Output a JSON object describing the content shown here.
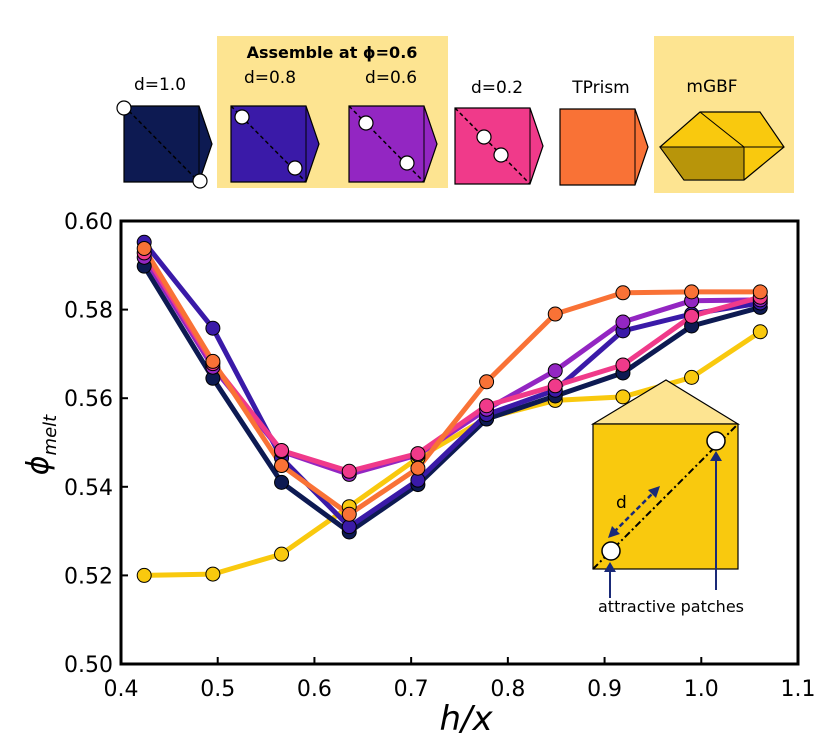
{
  "legend": {
    "assemble_label": "Assemble at ϕ=0.6",
    "shapes": [
      {
        "label": "d=1.0",
        "color": "#0d1a52"
      },
      {
        "label": "d=0.8",
        "color": "#3a1aa8"
      },
      {
        "label": "d=0.6",
        "color": "#9326c2"
      },
      {
        "label": "d=0.2",
        "color": "#f03a8a"
      },
      {
        "label": "TPrism",
        "color": "#f97236"
      },
      {
        "label": "mGBF",
        "color": "#f9c90e"
      }
    ]
  },
  "inset": {
    "d_label": "d",
    "patch_label": "attractive patches"
  },
  "chart_data": {
    "type": "line",
    "title": "",
    "xlabel": "h/x",
    "ylabel": "ϕ",
    "ylabel_sub": "melt",
    "xlim": [
      0.4,
      1.1
    ],
    "ylim": [
      0.5,
      0.6
    ],
    "xticks": [
      "0.4",
      "0.5",
      "0.6",
      "0.7",
      "0.8",
      "0.9",
      "1.0",
      "1.1"
    ],
    "yticks": [
      "0.50",
      "0.52",
      "0.54",
      "0.56",
      "0.58",
      "0.60"
    ],
    "x": [
      0.424,
      0.495,
      0.566,
      0.636,
      0.707,
      0.778,
      0.849,
      0.919,
      0.99,
      1.061
    ],
    "series": [
      {
        "name": "mGBF",
        "color": "#f9c90e",
        "values": [
          0.52,
          0.5203,
          0.5248,
          0.5355,
          0.5465,
          0.5555,
          0.5595,
          0.5603,
          0.5647,
          0.575
        ]
      },
      {
        "name": "d=1.0",
        "color": "#0d1a52",
        "values": [
          0.5898,
          0.5645,
          0.541,
          0.5298,
          0.5405,
          0.5553,
          0.5605,
          0.5657,
          0.5763,
          0.5805
        ]
      },
      {
        "name": "d=0.8",
        "color": "#3a1aa8",
        "values": [
          0.5952,
          0.5758,
          0.5465,
          0.531,
          0.5415,
          0.5563,
          0.5618,
          0.5752,
          0.579,
          0.5815
        ]
      },
      {
        "name": "d=0.6",
        "color": "#9326c2",
        "values": [
          0.5918,
          0.567,
          0.548,
          0.5428,
          0.5472,
          0.5575,
          0.5662,
          0.5772,
          0.582,
          0.5822
        ]
      },
      {
        "name": "d=0.2",
        "color": "#f03a8a",
        "values": [
          0.5928,
          0.5678,
          0.5482,
          0.5435,
          0.5475,
          0.5583,
          0.5628,
          0.5675,
          0.5785,
          0.5828
        ]
      },
      {
        "name": "TPrism",
        "color": "#f97236",
        "values": [
          0.5938,
          0.5683,
          0.5448,
          0.5338,
          0.5442,
          0.5637,
          0.579,
          0.5838,
          0.584,
          0.584
        ]
      }
    ]
  }
}
